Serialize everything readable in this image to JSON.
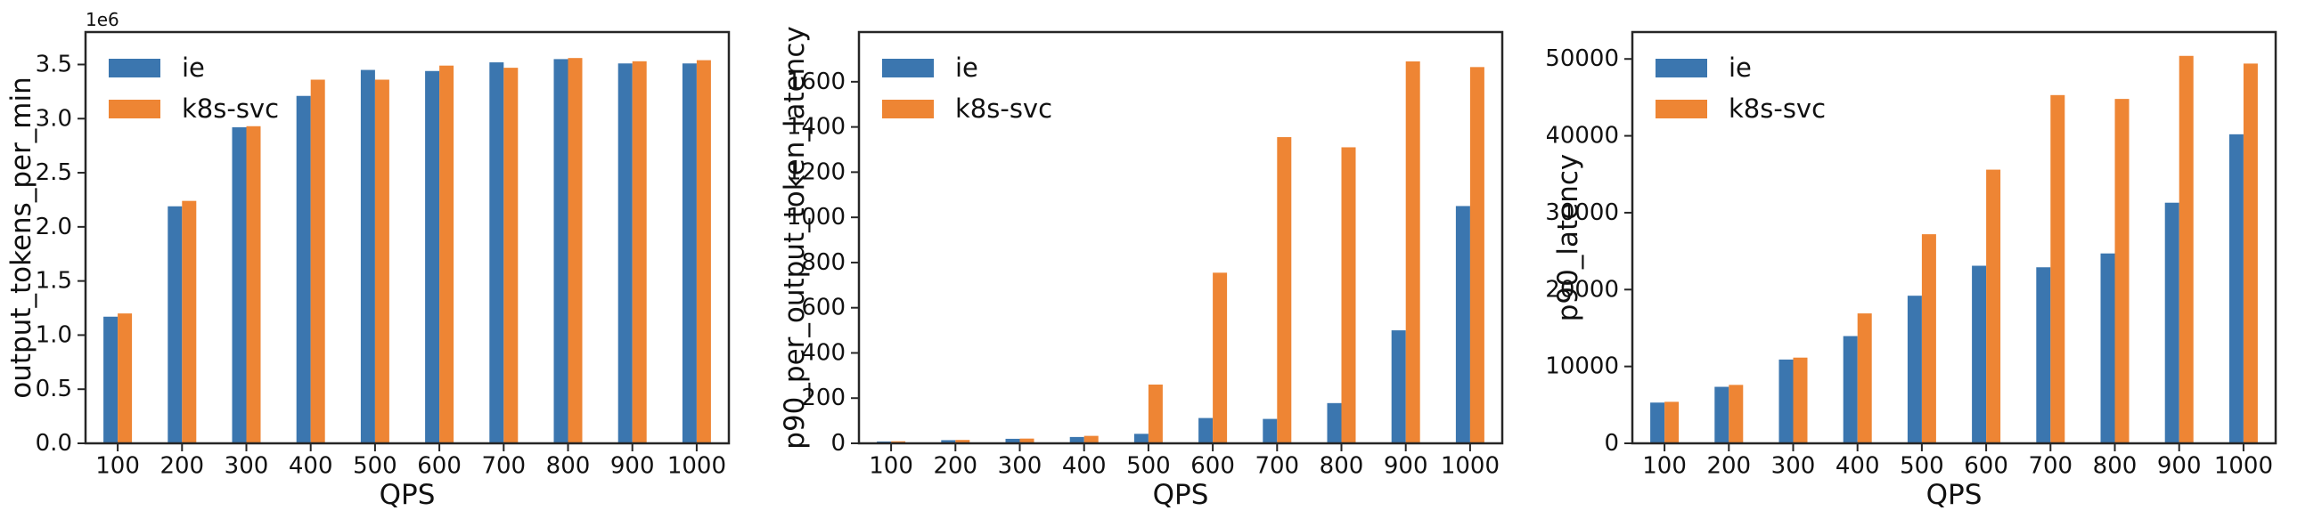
{
  "figure": {
    "background": "#ffffff",
    "series_colors": {
      "ie": "#3b76af",
      "k8s-svc": "#ee8534"
    },
    "axis_color": "#262626",
    "legend_labels": [
      "ie",
      "k8s-svc"
    ]
  },
  "chart_data": [
    {
      "type": "bar",
      "title": "",
      "xlabel": "QPS",
      "ylabel": "output_tokens_per_min",
      "offset_text": "1e6",
      "grid": false,
      "legend_position": "upper left",
      "categories": [
        "100",
        "200",
        "300",
        "400",
        "500",
        "600",
        "700",
        "800",
        "900",
        "1000"
      ],
      "series": [
        {
          "name": "ie",
          "values": [
            1170000,
            2190000,
            2920000,
            3210000,
            3450000,
            3440000,
            3520000,
            3550000,
            3510000,
            3510000
          ]
        },
        {
          "name": "k8s-svc",
          "values": [
            1200000,
            2240000,
            2930000,
            3360000,
            3360000,
            3490000,
            3470000,
            3560000,
            3530000,
            3540000
          ]
        }
      ],
      "yticks": [
        0,
        500000,
        1000000,
        1500000,
        2000000,
        2500000,
        3000000,
        3500000
      ],
      "ytick_labels": [
        "0.0",
        "0.5",
        "1.0",
        "1.5",
        "2.0",
        "2.5",
        "3.0",
        "3.5"
      ],
      "ylim": [
        0,
        3800000
      ]
    },
    {
      "type": "bar",
      "title": "",
      "xlabel": "QPS",
      "ylabel": "p90_per_output_token_latency",
      "offset_text": "",
      "grid": false,
      "legend_position": "upper left",
      "categories": [
        "100",
        "200",
        "300",
        "400",
        "500",
        "600",
        "700",
        "800",
        "900",
        "1000"
      ],
      "series": [
        {
          "name": "ie",
          "values": [
            8,
            14,
            20,
            28,
            42,
            112,
            108,
            178,
            500,
            1050
          ]
        },
        {
          "name": "k8s-svc",
          "values": [
            9,
            15,
            21,
            33,
            260,
            755,
            1355,
            1310,
            1690,
            1665
          ]
        }
      ],
      "yticks": [
        0,
        200,
        400,
        600,
        800,
        1000,
        1200,
        1400,
        1600
      ],
      "ytick_labels": [
        "0",
        "200",
        "400",
        "600",
        "800",
        "1000",
        "1200",
        "1400",
        "1600"
      ],
      "ylim": [
        0,
        1820
      ]
    },
    {
      "type": "bar",
      "title": "",
      "xlabel": "QPS",
      "ylabel": "p90_latency",
      "offset_text": "",
      "grid": false,
      "legend_position": "upper left",
      "categories": [
        "100",
        "200",
        "300",
        "400",
        "500",
        "600",
        "700",
        "800",
        "900",
        "1000"
      ],
      "series": [
        {
          "name": "ie",
          "values": [
            5300,
            7350,
            10900,
            13950,
            19200,
            23100,
            22900,
            24700,
            31300,
            40200
          ]
        },
        {
          "name": "k8s-svc",
          "values": [
            5400,
            7600,
            11150,
            16900,
            27200,
            35600,
            45300,
            44800,
            50400,
            49400
          ]
        }
      ],
      "yticks": [
        0,
        10000,
        20000,
        30000,
        40000,
        50000
      ],
      "ytick_labels": [
        "0",
        "10000",
        "20000",
        "30000",
        "40000",
        "50000"
      ],
      "ylim": [
        0,
        53500
      ]
    }
  ]
}
